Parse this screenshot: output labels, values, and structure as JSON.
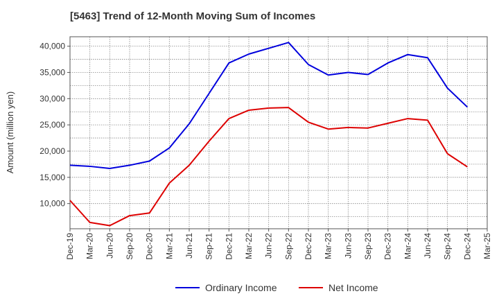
{
  "chart_data": {
    "type": "line",
    "title": "[5463]  Trend of 12-Month Moving Sum of Incomes",
    "xlabel": "",
    "ylabel": "Amount (million yen)",
    "categories": [
      "Dec-19",
      "Mar-20",
      "Jun-20",
      "Sep-20",
      "Dec-20",
      "Mar-21",
      "Jun-21",
      "Sep-21",
      "Dec-21",
      "Mar-22",
      "Jun-22",
      "Sep-22",
      "Dec-22",
      "Mar-23",
      "Jun-23",
      "Sep-23",
      "Dec-23",
      "Mar-24",
      "Jun-24",
      "Sep-24",
      "Dec-24",
      "Mar-25"
    ],
    "ylim": [
      5200,
      41800
    ],
    "yticks": [
      10000,
      15000,
      20000,
      25000,
      30000,
      35000,
      40000
    ],
    "ytick_labels": [
      "10,000",
      "15,000",
      "20,000",
      "25,000",
      "30,000",
      "35,000",
      "40,000"
    ],
    "grid": true,
    "legend_position": "bottom-center",
    "series": [
      {
        "name": "Ordinary Income",
        "color": "#0000dd",
        "values": [
          17300,
          17100,
          16700,
          17300,
          18100,
          20600,
          25200,
          31000,
          36800,
          38500,
          39600,
          40700,
          36500,
          34500,
          35000,
          34600,
          36800,
          38400,
          37800,
          32000,
          28400,
          null
        ]
      },
      {
        "name": "Net Income",
        "color": "#dd0000",
        "values": [
          10600,
          6400,
          5800,
          7700,
          8200,
          13900,
          17300,
          21900,
          26200,
          27800,
          28200,
          28300,
          25500,
          24200,
          24500,
          24400,
          25300,
          26200,
          25900,
          19500,
          17000,
          null
        ]
      }
    ]
  }
}
